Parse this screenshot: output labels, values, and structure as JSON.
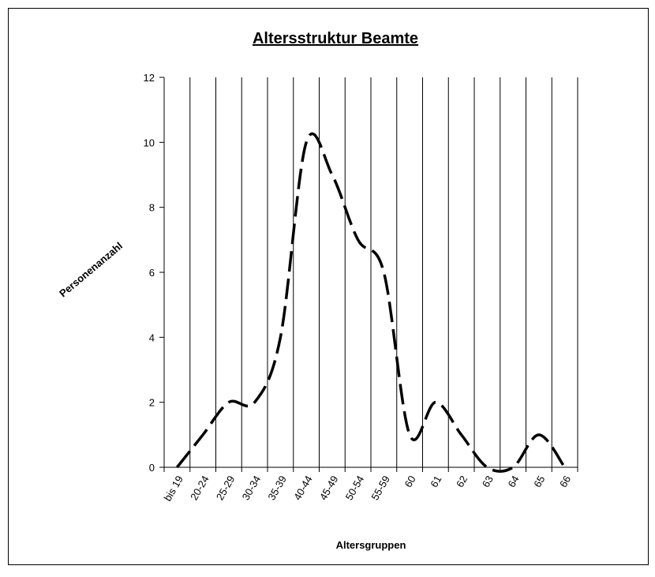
{
  "chart_data": {
    "type": "line",
    "title": "Altersstruktur Beamte",
    "x_label": "Altersgruppen",
    "y_label": "Personenanzahl",
    "categories": [
      "bis 19",
      "20-24",
      "25-29",
      "30-34",
      "35-39",
      "40-44",
      "45-49",
      "50-54",
      "55-59",
      "60",
      "61",
      "62",
      "63",
      "64",
      "65",
      "66"
    ],
    "values": [
      0,
      1,
      2,
      2,
      4,
      10,
      9,
      7,
      6,
      1,
      2,
      1,
      0,
      0,
      1,
      0
    ],
    "color": "#000000",
    "smooth": true,
    "dashed": true,
    "ylim": [
      0,
      12
    ],
    "yticks": [
      0,
      2,
      4,
      6,
      8,
      10,
      12
    ],
    "grid": "vertical"
  }
}
